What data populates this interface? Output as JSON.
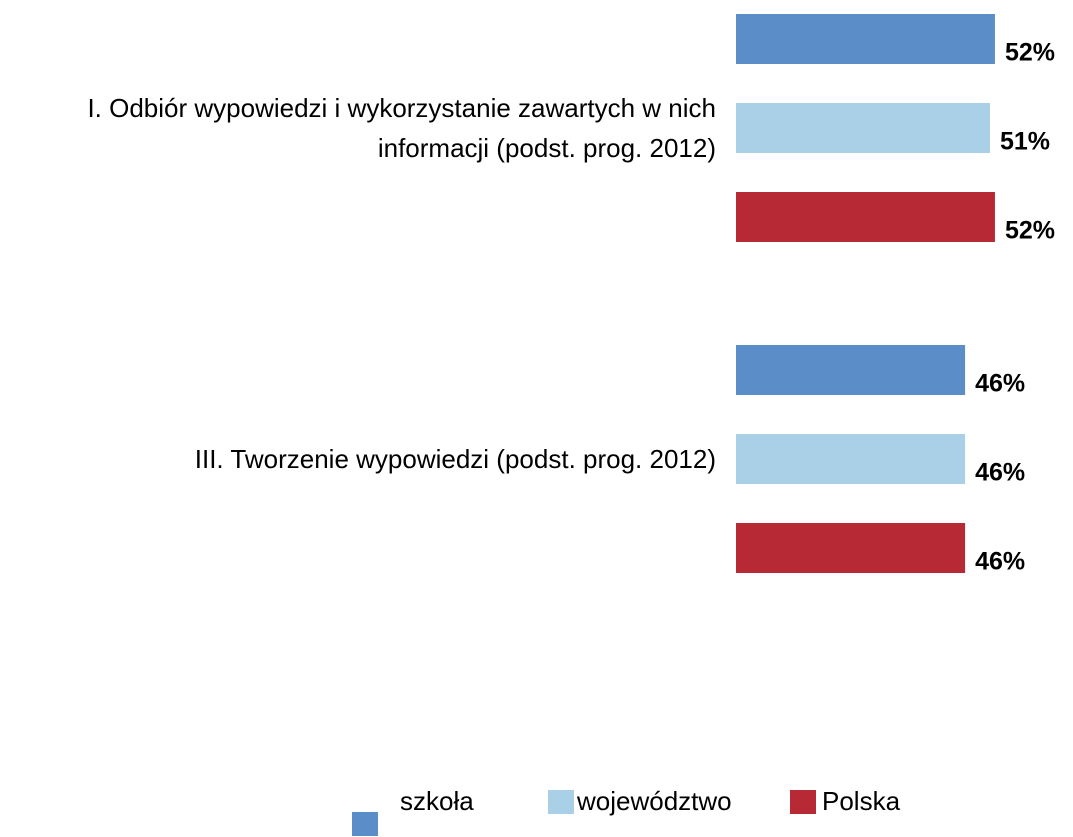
{
  "chart_data": {
    "type": "hbar",
    "categories": [
      "I. Odbiór wypowiedzi i wykorzystanie zawartych w nich informacji (podst. prog. 2012)",
      "III. Tworzenie wypowiedzi (podst. prog. 2012)"
    ],
    "series": [
      {
        "name": "szkoła",
        "color": "#5b8ec9",
        "values": [
          52,
          46
        ],
        "value_labels": [
          "52%",
          "46%"
        ]
      },
      {
        "name": "województwo",
        "color": "#a9d0e6",
        "values": [
          51,
          46
        ],
        "value_labels": [
          "51%",
          "46%"
        ]
      },
      {
        "name": "Polska",
        "color": "#b72a35",
        "values": [
          52,
          46
        ],
        "value_labels": [
          "52%",
          "46%"
        ]
      }
    ],
    "xlim": [
      0,
      100
    ],
    "legend": "bottom"
  }
}
